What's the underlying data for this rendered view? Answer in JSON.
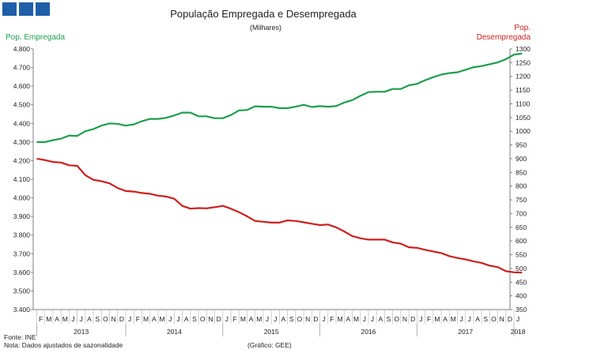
{
  "logo": {
    "squares": 3,
    "color": "#1f5fa8"
  },
  "colors": {
    "employed": "#1e9e4e",
    "unemployed": "#cc1f1f",
    "axis": "#7f7f7f",
    "text": "#222222"
  },
  "footer": {
    "source": "Fonte: INE",
    "note": "Nota: Dados ajustados de sazonalidade",
    "credit": "(Gráfico: GEE)"
  },
  "chart_data": {
    "type": "line",
    "title": "População Empregada e Desempregada",
    "subtitle": "(Milhares)",
    "left_axis_label": "Pop. Empregada",
    "right_axis_label_line1": "Pop.",
    "right_axis_label_line2": "Desempregada",
    "left_ylim": [
      3400,
      4800
    ],
    "left_ticks": [
      3400,
      3500,
      3600,
      3700,
      3800,
      3900,
      4000,
      4100,
      4200,
      4300,
      4400,
      4500,
      4600,
      4700,
      4800
    ],
    "left_tick_labels": [
      "3.400",
      "3.500",
      "3.600",
      "3.700",
      "3.800",
      "3.900",
      "4.000",
      "4.100",
      "4.200",
      "4.300",
      "4.400",
      "4.500",
      "4.600",
      "4.700",
      "4.800"
    ],
    "right_ylim": [
      350,
      1300
    ],
    "right_ticks": [
      350,
      400,
      450,
      500,
      550,
      600,
      650,
      700,
      750,
      800,
      850,
      900,
      950,
      1000,
      1050,
      1100,
      1150,
      1200,
      1250,
      1300
    ],
    "month_labels": [
      "F",
      "M",
      "A",
      "M",
      "J",
      "J",
      "A",
      "S",
      "O",
      "N",
      "D",
      "J",
      "F",
      "M",
      "A",
      "M",
      "J",
      "J",
      "A",
      "S",
      "O",
      "N",
      "D",
      "J",
      "F",
      "M",
      "A",
      "M",
      "J",
      "J",
      "A",
      "S",
      "O",
      "N",
      "D",
      "J",
      "F",
      "M",
      "A",
      "M",
      "J",
      "J",
      "A",
      "S",
      "O",
      "N",
      "D",
      "J",
      "F",
      "M",
      "A",
      "M",
      "J",
      "J",
      "A",
      "S",
      "O",
      "N",
      "D",
      "J"
    ],
    "years": [
      {
        "label": "2013",
        "start": 0,
        "end": 11
      },
      {
        "label": "2014",
        "start": 11,
        "end": 23
      },
      {
        "label": "2015",
        "start": 23,
        "end": 35
      },
      {
        "label": "2016",
        "start": 35,
        "end": 47
      },
      {
        "label": "2017",
        "start": 47,
        "end": 59
      },
      {
        "label": "2018",
        "start": 59,
        "end": 60
      }
    ],
    "series": [
      {
        "name": "Pop. Empregada",
        "axis": "left",
        "color": "#1e9e4e",
        "values": [
          4300,
          4300,
          4310,
          4318,
          4335,
          4333,
          4358,
          4370,
          4388,
          4400,
          4398,
          4388,
          4395,
          4412,
          4424,
          4424,
          4430,
          4443,
          4458,
          4458,
          4438,
          4438,
          4428,
          4428,
          4445,
          4470,
          4472,
          4492,
          4490,
          4490,
          4482,
          4482,
          4490,
          4500,
          4488,
          4493,
          4490,
          4493,
          4512,
          4525,
          4548,
          4568,
          4570,
          4570,
          4585,
          4585,
          4605,
          4612,
          4632,
          4648,
          4662,
          4670,
          4675,
          4688,
          4702,
          4708,
          4718,
          4728,
          4745,
          4770,
          4775
        ]
      },
      {
        "name": "Pop. Desempregada",
        "axis": "right",
        "color": "#cc1f1f",
        "values": [
          900,
          895,
          888,
          886,
          876,
          874,
          840,
          823,
          818,
          810,
          793,
          782,
          780,
          775,
          772,
          765,
          762,
          754,
          728,
          718,
          720,
          719,
          723,
          728,
          718,
          705,
          690,
          673,
          670,
          667,
          667,
          675,
          673,
          668,
          663,
          658,
          660,
          650,
          635,
          618,
          610,
          605,
          605,
          605,
          595,
          590,
          577,
          575,
          568,
          562,
          556,
          545,
          538,
          533,
          526,
          520,
          510,
          505,
          490,
          486,
          485
        ]
      }
    ]
  }
}
